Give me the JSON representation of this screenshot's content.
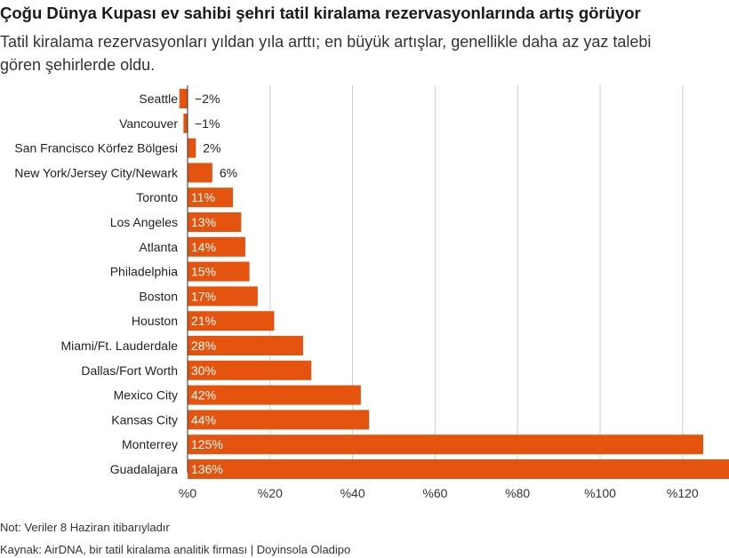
{
  "title": "Çoğu Dünya Kupası ev sahibi şehri tatil kiralama rezervasyonlarında artış görüyor",
  "subtitle": "Tatil kiralama rezervasyonları yıldan yıla arttı; en büyük artışlar, genellikle daha az yaz talebi gören şehirlerde oldu.",
  "note": "Not: Veriler 8 Haziran itibarıyladır",
  "source": "Kaynak: AirDNA, bir tatil kiralama analitik firması | Doyinsola Oladipo",
  "colors": {
    "bar": "#e5540e",
    "grid": "#cccccc",
    "axis": "#333333",
    "text": "#222222",
    "inside_label": "#ffffff"
  },
  "chart_data": {
    "type": "bar",
    "orientation": "horizontal",
    "categories": [
      "Seattle",
      "Vancouver",
      "San Francisco Körfez Bölgesi",
      "New York/Jersey City/Newark",
      "Toronto",
      "Los Angeles",
      "Atlanta",
      "Philadelphia",
      "Boston",
      "Houston",
      "Miami/Ft. Lauderdale",
      "Dallas/Fort Worth",
      "Mexico City",
      "Kansas City",
      "Monterrey",
      "Guadalajara"
    ],
    "values": [
      -2,
      -1,
      2,
      6,
      11,
      13,
      14,
      15,
      17,
      21,
      28,
      30,
      42,
      44,
      125,
      136
    ],
    "value_labels": [
      "−2%",
      "−1%",
      "2%",
      "6%",
      "11%",
      "13%",
      "14%",
      "15%",
      "17%",
      "21%",
      "28%",
      "30%",
      "42%",
      "44%",
      "125%",
      "136%"
    ],
    "x_ticks": [
      0,
      20,
      40,
      60,
      80,
      100,
      120
    ],
    "x_tick_labels": [
      "%0",
      "%20",
      "%40",
      "%60",
      "%80",
      "%100",
      "%120"
    ],
    "xlim": [
      0,
      136
    ],
    "grid": "vertical",
    "legend": "none"
  }
}
